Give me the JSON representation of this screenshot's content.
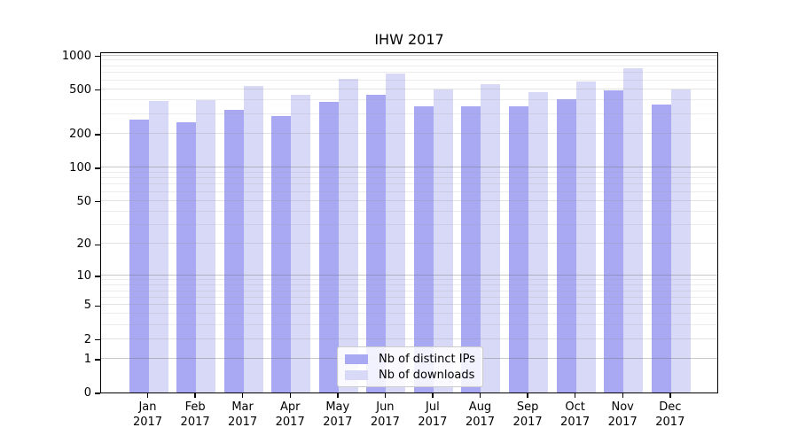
{
  "chart_data": {
    "type": "bar",
    "title": "IHW 2017",
    "months": [
      "Jan",
      "Feb",
      "Mar",
      "Apr",
      "May",
      "Jun",
      "Jul",
      "Aug",
      "Sep",
      "Oct",
      "Nov",
      "Dec"
    ],
    "year": "2017",
    "series": [
      {
        "name": "Nb of distinct IPs",
        "color": "#a8a8f3",
        "values": [
          268,
          255,
          328,
          290,
          386,
          449,
          349,
          353,
          353,
          405,
          486,
          368
        ]
      },
      {
        "name": "Nb of downloads",
        "color": "#d8d8f7",
        "values": [
          393,
          397,
          535,
          449,
          619,
          686,
          500,
          555,
          469,
          586,
          770,
          497
        ]
      }
    ],
    "yticks": [
      0,
      1,
      2,
      5,
      10,
      20,
      50,
      100,
      200,
      500,
      1000
    ],
    "scale": "log1p",
    "ylim": [
      0,
      1060
    ],
    "xlabel": "",
    "ylabel": "",
    "grid": true,
    "legend_position": "lower center inside"
  },
  "colors": {
    "bar_distinct_ips": "#a8a8f3",
    "bar_downloads": "#d8d8f7",
    "spine": "#000000",
    "grid_major": "#c8c8c8",
    "grid_minor": "#ececec",
    "legend_border": "#cccccc"
  }
}
